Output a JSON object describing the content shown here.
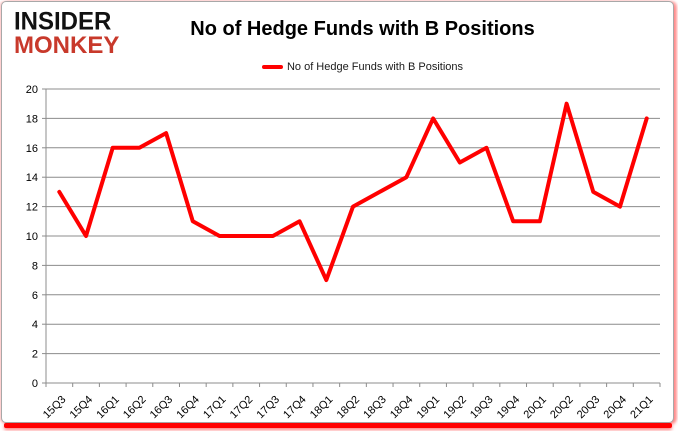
{
  "logo": {
    "line1": "INSIDER",
    "line2": "MONKEY",
    "line1_color": "#111111",
    "line2_color": "#c8392b"
  },
  "title": "No of Hedge Funds with B Positions",
  "legend": {
    "label": "No of Hedge Funds with B Positions",
    "swatch_color": "#ff0000"
  },
  "colors": {
    "line": "#ff0000",
    "grid": "#8c8c8c",
    "axis": "#8c8c8c",
    "text": "#000000",
    "frame_border": "#a8a8a8",
    "bottom_bar": "#ff0000"
  },
  "chart_data": {
    "type": "line",
    "title": "No of Hedge Funds with B Positions",
    "categories": [
      "15Q3",
      "15Q4",
      "16Q1",
      "16Q2",
      "16Q3",
      "16Q4",
      "17Q1",
      "17Q2",
      "17Q3",
      "17Q4",
      "18Q1",
      "18Q2",
      "18Q3",
      "18Q4",
      "19Q1",
      "19Q2",
      "19Q3",
      "19Q4",
      "20Q1",
      "20Q2",
      "20Q3",
      "20Q4",
      "21Q1"
    ],
    "series": [
      {
        "name": "No of Hedge Funds with B Positions",
        "color": "#ff0000",
        "values": [
          13,
          10,
          16,
          16,
          17,
          11,
          10,
          10,
          10,
          11,
          7,
          12,
          13,
          14,
          18,
          15,
          16,
          11,
          11,
          19,
          13,
          12,
          18
        ]
      }
    ],
    "xlabel": "",
    "ylabel": "",
    "ylim": [
      0,
      20
    ],
    "yticks": [
      0,
      2,
      4,
      6,
      8,
      10,
      12,
      14,
      16,
      18,
      20
    ],
    "grid": true,
    "legend_position": "top-center"
  }
}
